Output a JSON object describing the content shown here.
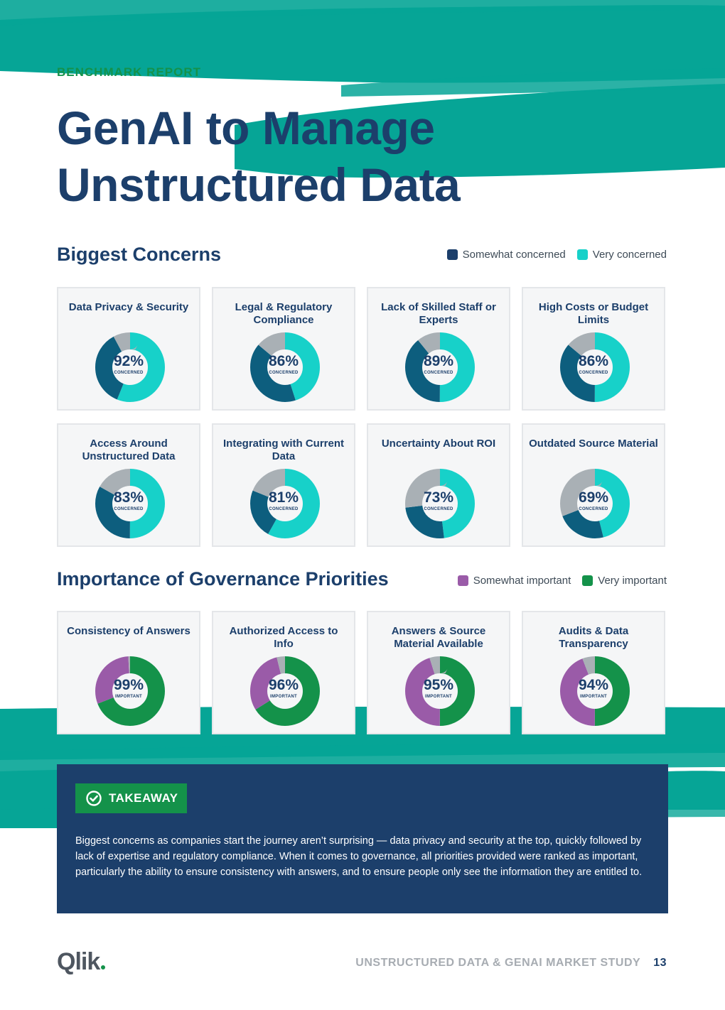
{
  "header": {
    "eyebrow": "BENCHMARK REPORT",
    "title_line1": "GenAI to Manage",
    "title_line2": "Unstructured Data"
  },
  "colors": {
    "navy": "#1c3f6b",
    "teal_dark": "#0d5e7e",
    "teal_light": "#17d1c9",
    "gray": "#a9b0b5",
    "purple": "#9a5ba8",
    "green": "#14924a",
    "brush": "#06a596"
  },
  "concerns": {
    "heading": "Biggest Concerns",
    "legend": [
      "Somewhat concerned",
      "Very concerned"
    ],
    "sublabel": "CONCERNED",
    "items": [
      {
        "label": "Data Privacy & Security",
        "pct": "92%",
        "somewhat": 36,
        "very": 56
      },
      {
        "label": "Legal & Regulatory Compliance",
        "pct": "86%",
        "somewhat": 41,
        "very": 45
      },
      {
        "label": "Lack of Skilled Staff or Experts",
        "pct": "89%",
        "somewhat": 39,
        "very": 50
      },
      {
        "label": "High Costs or Budget Limits",
        "pct": "86%",
        "somewhat": 36,
        "very": 50
      },
      {
        "label": "Access Around Unstructured Data",
        "pct": "83%",
        "somewhat": 33,
        "very": 50
      },
      {
        "label": "Integrating with Current Data",
        "pct": "81%",
        "somewhat": 23,
        "very": 58
      },
      {
        "label": "Uncertainty About ROI",
        "pct": "73%",
        "somewhat": 25,
        "very": 48
      },
      {
        "label": "Outdated Source Material",
        "pct": "69%",
        "somewhat": 23,
        "very": 46
      }
    ]
  },
  "governance": {
    "heading": "Importance of Governance Priorities",
    "legend": [
      "Somewhat important",
      "Very important"
    ],
    "sublabel": "IMPORTANT",
    "items": [
      {
        "label": "Consistency of Answers",
        "pct": "99%",
        "somewhat": 30,
        "very": 69
      },
      {
        "label": "Authorized Access to Info",
        "pct": "96%",
        "somewhat": 30,
        "very": 66
      },
      {
        "label": "Answers & Source Material Available",
        "pct": "95%",
        "somewhat": 45,
        "very": 50
      },
      {
        "label": "Audits & Data Transparency",
        "pct": "94%",
        "somewhat": 44,
        "very": 50
      }
    ]
  },
  "takeaway": {
    "badge": "TAKEAWAY",
    "text": "Biggest concerns as companies start the journey aren’t surprising — data privacy and security at the top, quickly followed by lack of expertise and regulatory compliance. When it comes to governance, all priorities provided were ranked as important, particularly the ability to ensure consistency with answers, and to ensure people only see the information they are entitled to."
  },
  "footer": {
    "logo": "Qlik",
    "study": "UNSTRUCTURED DATA & GENAI MARKET STUDY",
    "page": "13"
  }
}
